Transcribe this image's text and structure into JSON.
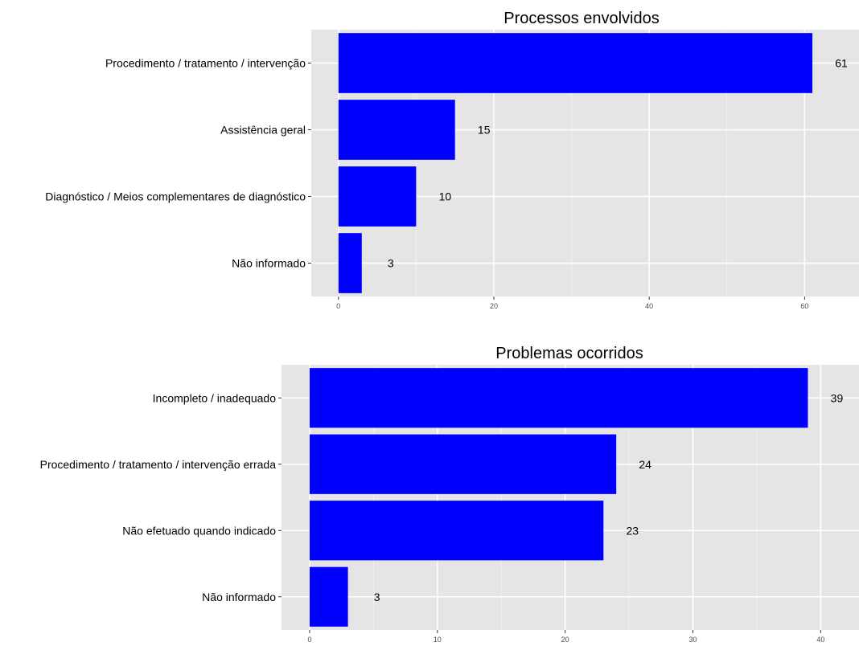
{
  "chart_data": [
    {
      "type": "bar",
      "orientation": "horizontal",
      "title": "Processos envolvidos",
      "categories": [
        "Procedimento / tratamento / intervenção",
        "Assistência geral",
        "Diagnóstico / Meios complementares de diagnóstico",
        "Não informado"
      ],
      "values": [
        61,
        15,
        10,
        3
      ],
      "value_labels": [
        "61",
        "15",
        "10",
        "3"
      ],
      "xticks": [
        0,
        20,
        40,
        60
      ],
      "xtick_labels": [
        "0",
        "20",
        "40",
        "60"
      ],
      "xlim": [
        -3.5,
        67
      ],
      "bar_color": "#0000ff",
      "panel_color": "#e5e5e5",
      "grid_color": "#ffffff",
      "grid": true,
      "legend": "none"
    },
    {
      "type": "bar",
      "orientation": "horizontal",
      "title": "Problemas ocorridos",
      "categories": [
        "Incompleto / inadequado",
        "Procedimento / tratamento / intervenção errada",
        "Não efetuado quando indicado",
        "Não informado"
      ],
      "values": [
        39,
        24,
        23,
        3
      ],
      "value_labels": [
        "39",
        "24",
        "23",
        "3"
      ],
      "xticks": [
        0,
        10,
        20,
        30,
        40
      ],
      "xtick_labels": [
        "0",
        "10",
        "20",
        "30",
        "40"
      ],
      "xlim": [
        -2.2,
        43
      ],
      "bar_color": "#0000ff",
      "panel_color": "#e5e5e5",
      "grid_color": "#ffffff",
      "grid": true,
      "legend": "none"
    }
  ]
}
